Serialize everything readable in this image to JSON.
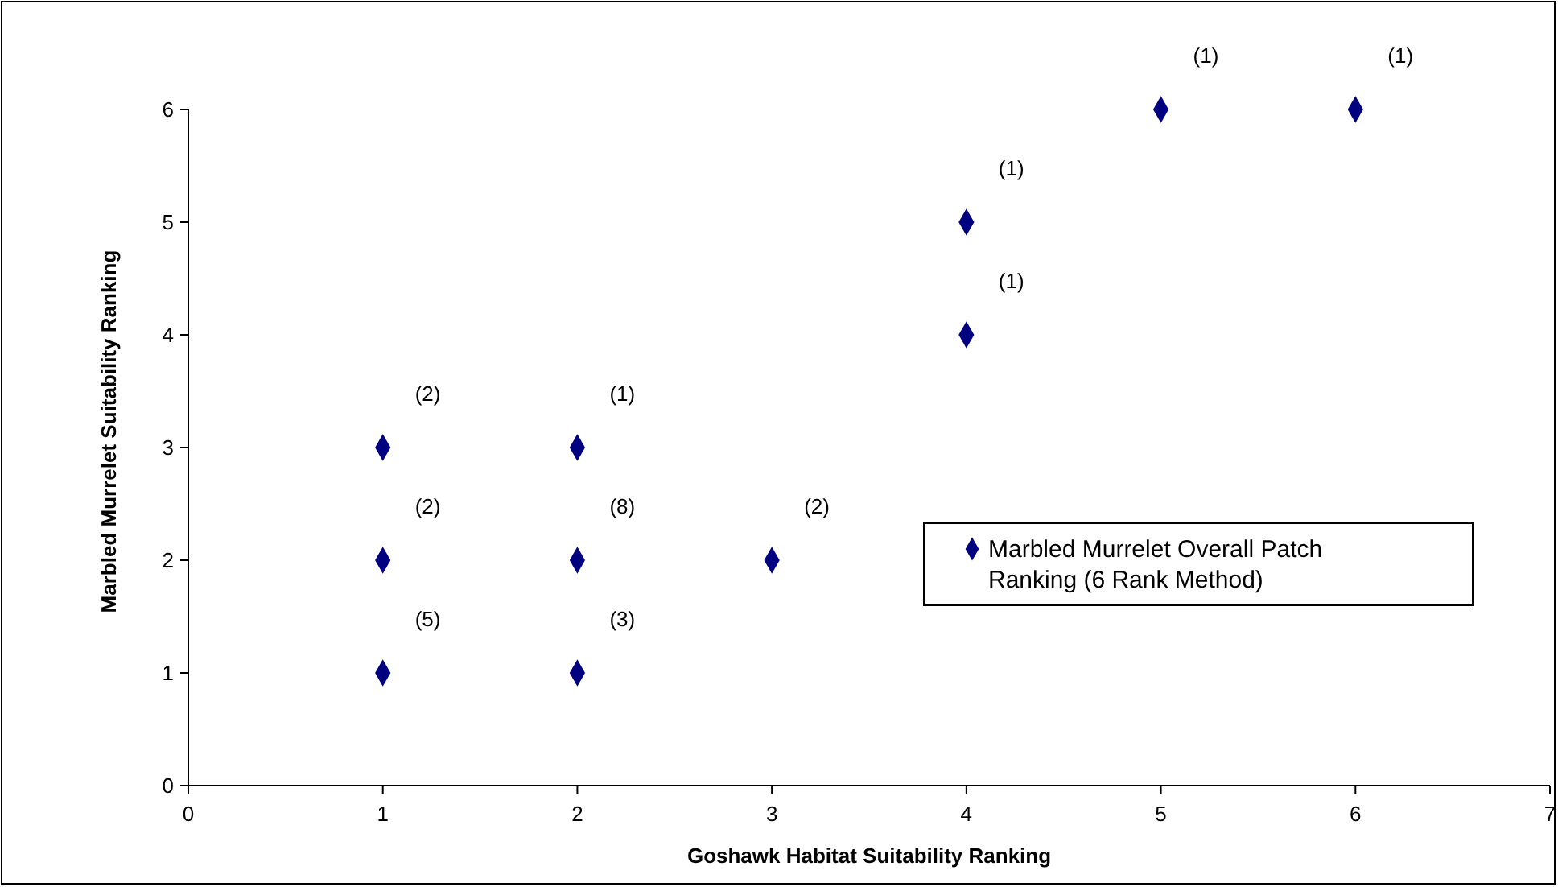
{
  "chart_data": {
    "type": "scatter",
    "xlabel": "Goshawk Habitat Suitability Ranking",
    "ylabel": "Marbled Murrelet Suitability Ranking",
    "x": [
      1,
      1,
      1,
      2,
      2,
      2,
      3,
      4,
      4,
      5,
      6
    ],
    "series": [
      {
        "name": "Marbled Murrelet Overall Patch Ranking (6 Rank Method)",
        "color": "#000080",
        "values": [
          3,
          2,
          1,
          3,
          2,
          1,
          2,
          5,
          4,
          6,
          6
        ]
      }
    ],
    "xlim": [
      0,
      7
    ],
    "xticks": [
      0,
      1,
      2,
      3,
      4,
      5,
      6,
      7
    ],
    "ylim": [
      0,
      6
    ],
    "yticks": [
      0,
      1,
      2,
      3,
      4,
      5,
      6
    ],
    "grid": false,
    "legend": "right",
    "marker": "diamond",
    "annotations": [
      {
        "text": "(2)",
        "x": 1,
        "y": 3
      },
      {
        "text": "(2)",
        "x": 1,
        "y": 2
      },
      {
        "text": "(5)",
        "x": 1,
        "y": 1
      },
      {
        "text": "(1)",
        "x": 2,
        "y": 3
      },
      {
        "text": "(8)",
        "x": 2,
        "y": 2
      },
      {
        "text": "(3)",
        "x": 2,
        "y": 1
      },
      {
        "text": "(2)",
        "x": 3,
        "y": 2
      },
      {
        "text": "(1)",
        "x": 4,
        "y": 5
      },
      {
        "text": "(1)",
        "x": 4,
        "y": 4
      },
      {
        "text": "(1)",
        "x": 5,
        "y": 6
      },
      {
        "text": "(1)",
        "x": 6,
        "y": 6
      }
    ]
  }
}
